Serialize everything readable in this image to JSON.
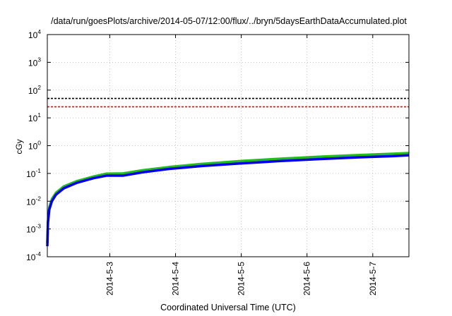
{
  "chart_data": {
    "type": "line",
    "title": "/data/run/goesPlots/archive/2014-05-07/12:00/flux/../bryn/5daysEarthDataAccumulated.plot",
    "xlabel": "Coordinated Universal Time (UTC)",
    "ylabel": "cGy",
    "y_scale": "log",
    "ylim": [
      0.0001,
      10000
    ],
    "xlim": [
      2.05,
      7.55
    ],
    "x_unit": "day of 2014-05",
    "grid": true,
    "legend": "none",
    "y_ticks": [
      {
        "base": "10",
        "exp": "4",
        "value": 10000
      },
      {
        "base": "10",
        "exp": "3",
        "value": 1000
      },
      {
        "base": "10",
        "exp": "2",
        "value": 100
      },
      {
        "base": "10",
        "exp": "1",
        "value": 10
      },
      {
        "base": "10",
        "exp": "0",
        "value": 1
      },
      {
        "base": "10",
        "exp": "-1",
        "value": 0.1
      },
      {
        "base": "10",
        "exp": "-2",
        "value": 0.01
      },
      {
        "base": "10",
        "exp": "-3",
        "value": 0.001
      },
      {
        "base": "10",
        "exp": "-4",
        "value": 0.0001
      }
    ],
    "x_ticks": [
      {
        "label": "2014-5-3",
        "value": 3
      },
      {
        "label": "2014-5-4",
        "value": 4
      },
      {
        "label": "2014-5-5",
        "value": 5
      },
      {
        "label": "2014-5-6",
        "value": 6
      },
      {
        "label": "2014-5-7",
        "value": 7
      }
    ],
    "thresholds": [
      {
        "value": 50,
        "color": "#000000"
      },
      {
        "value": 25,
        "color": "#ff0000"
      }
    ],
    "series": [
      {
        "color": "#22bb22",
        "width": 3.5,
        "x": [
          2.05,
          2.06,
          2.08,
          2.12,
          2.18,
          2.3,
          2.5,
          2.75,
          2.95,
          3.2,
          3.5,
          3.9,
          4.4,
          5.0,
          5.6,
          6.2,
          6.8,
          7.3,
          7.55
        ],
        "y": [
          0.00032,
          0.002,
          0.006,
          0.012,
          0.02,
          0.034,
          0.053,
          0.077,
          0.098,
          0.1,
          0.13,
          0.17,
          0.22,
          0.28,
          0.34,
          0.4,
          0.46,
          0.51,
          0.54
        ]
      },
      {
        "color": "#0000ee",
        "width": 3.5,
        "x": [
          2.05,
          2.06,
          2.08,
          2.12,
          2.18,
          2.3,
          2.5,
          2.75,
          2.95,
          3.2,
          3.5,
          3.9,
          4.4,
          5.0,
          5.6,
          6.2,
          6.8,
          7.3,
          7.55
        ],
        "y": [
          0.00024,
          0.0017,
          0.005,
          0.01,
          0.017,
          0.029,
          0.046,
          0.067,
          0.083,
          0.083,
          0.11,
          0.145,
          0.185,
          0.23,
          0.28,
          0.33,
          0.38,
          0.42,
          0.45
        ]
      }
    ]
  }
}
